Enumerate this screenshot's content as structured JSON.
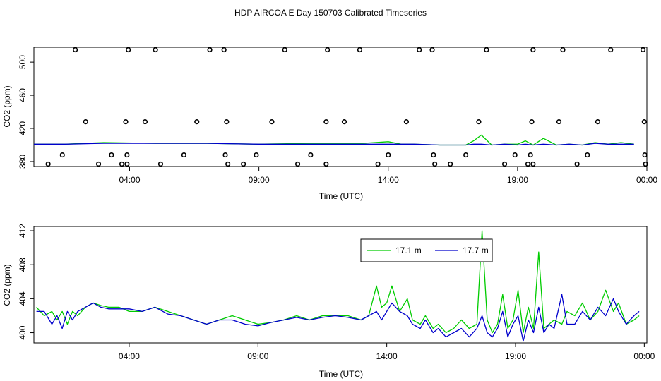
{
  "chart_data": [
    {
      "type": "scatter",
      "title": "HDP AIRCOA E  Day 150703  Calibrated Timeseries",
      "xlabel": "Time (UTC)",
      "ylabel": "CO2 (ppm)",
      "x_unit": "hours",
      "xlim": [
        0.3,
        24.0
      ],
      "ylim": [
        374,
        518
      ],
      "xticks": [
        {
          "value": 4,
          "label": "04:00"
        },
        {
          "value": 9,
          "label": "09:00"
        },
        {
          "value": 14,
          "label": "14:00"
        },
        {
          "value": 19,
          "label": "19:00"
        },
        {
          "value": 24,
          "label": "00:00"
        }
      ],
      "yticks": [
        380,
        420,
        460,
        500
      ],
      "colors": {
        "green": "#00cc00",
        "blue": "#0000cc"
      },
      "calibration_points": {
        "x": [
          0.85,
          2.3,
          1.4,
          1.9,
          2.8,
          3.3,
          3.7,
          3.85,
          3.9,
          3.9,
          3.95,
          4.6,
          5.0,
          5.2,
          6.1,
          6.6,
          7.1,
          7.65,
          7.7,
          7.75,
          7.8,
          8.4,
          8.9,
          9.5,
          10.0,
          10.5,
          11.0,
          11.6,
          11.6,
          11.65,
          12.3,
          12.9,
          13.6,
          14.0,
          14.7,
          15.2,
          15.7,
          15.75,
          15.8,
          16.4,
          17.0,
          17.5,
          17.8,
          18.5,
          18.9,
          19.4,
          19.5,
          19.55,
          19.6,
          19.6,
          20.6,
          20.75,
          21.3,
          21.7,
          22.1,
          22.6,
          23.85,
          23.9,
          23.92,
          23.95
        ],
        "y": [
          377,
          428,
          388,
          515,
          377,
          388,
          377,
          428,
          388,
          377,
          515,
          428,
          515,
          377,
          388,
          428,
          515,
          515,
          388,
          428,
          377,
          377,
          388,
          428,
          515,
          377,
          388,
          377,
          428,
          515,
          428,
          515,
          377,
          388,
          428,
          515,
          515,
          388,
          377,
          377,
          388,
          428,
          515,
          377,
          388,
          377,
          388,
          428,
          515,
          377,
          428,
          515,
          377,
          388,
          428,
          515,
          515,
          428,
          388,
          377
        ]
      },
      "series_breakpoints": [
        {
          "name": "17.1 m",
          "x": [
            0.3,
            1.5,
            3.0,
            5.0,
            7.0,
            9.0,
            11.0,
            13.0,
            14.0,
            14.5,
            15.0,
            16.0,
            17.0,
            17.3,
            17.6,
            18.0,
            18.5,
            19.0,
            19.3,
            19.6,
            20.0,
            20.5,
            21.0,
            21.5,
            22.0,
            22.5,
            23.0,
            23.5
          ],
          "y": [
            401,
            401,
            403,
            402,
            402,
            401,
            402,
            402,
            404,
            401,
            401,
            400,
            400,
            405,
            412,
            400,
            401,
            401,
            405,
            400,
            408,
            400,
            401,
            400,
            403,
            401,
            403,
            401
          ]
        },
        {
          "name": "17.7 m",
          "x": [
            0.3,
            1.5,
            3.0,
            5.0,
            7.0,
            9.0,
            11.0,
            13.0,
            14.0,
            14.5,
            15.0,
            16.0,
            17.0,
            17.3,
            17.6,
            18.0,
            18.5,
            19.0,
            19.3,
            19.6,
            20.0,
            20.5,
            21.0,
            21.5,
            22.0,
            22.5,
            23.0,
            23.5
          ],
          "y": [
            401,
            401,
            402,
            402,
            402,
            401,
            401,
            401,
            401,
            401,
            401,
            400,
            400,
            401,
            401,
            400,
            401,
            400,
            401,
            400,
            401,
            400,
            401,
            400,
            402,
            401,
            401,
            401
          ]
        }
      ]
    },
    {
      "type": "line",
      "title": "",
      "xlabel": "Time (UTC)",
      "ylabel": "CO2 (ppm)",
      "x_unit": "hours",
      "xlim": [
        0.3,
        24.1
      ],
      "ylim": [
        398.8,
        412.5
      ],
      "xticks": [
        {
          "value": 4,
          "label": "04:00"
        },
        {
          "value": 9,
          "label": "09:00"
        },
        {
          "value": 14,
          "label": "14:00"
        },
        {
          "value": 19,
          "label": "19:00"
        },
        {
          "value": 24,
          "label": "00:00"
        }
      ],
      "yticks": [
        400,
        404,
        408,
        412
      ],
      "legend": "top-center",
      "series": [
        {
          "name": "17.1 m",
          "color": "#00cc00",
          "x": [
            0.4,
            0.7,
            1.0,
            1.2,
            1.4,
            1.6,
            1.8,
            2.0,
            2.3,
            2.6,
            2.9,
            3.2,
            3.6,
            4.0,
            4.5,
            5.0,
            5.5,
            6.0,
            6.5,
            7.0,
            7.5,
            8.0,
            8.5,
            9.0,
            9.5,
            10.0,
            10.5,
            11.0,
            11.5,
            12.0,
            12.5,
            13.0,
            13.3,
            13.6,
            13.8,
            14.0,
            14.2,
            14.5,
            14.8,
            15.0,
            15.3,
            15.5,
            15.8,
            16.0,
            16.3,
            16.6,
            16.9,
            17.2,
            17.5,
            17.7,
            17.9,
            18.1,
            18.3,
            18.5,
            18.7,
            18.9,
            19.1,
            19.3,
            19.5,
            19.7,
            19.9,
            20.1,
            20.3,
            20.5,
            20.8,
            21.0,
            21.3,
            21.6,
            21.9,
            22.2,
            22.5,
            22.8,
            23.0,
            23.3,
            23.6,
            23.8
          ],
          "y": [
            403.0,
            402.0,
            402.5,
            401.5,
            402.5,
            401.0,
            402.5,
            402.0,
            403.0,
            403.5,
            403.2,
            403.0,
            403.0,
            402.5,
            402.5,
            403.0,
            402.5,
            402.0,
            401.5,
            401.0,
            401.5,
            402.0,
            401.5,
            401.0,
            401.2,
            401.5,
            402.0,
            401.5,
            402.0,
            402.0,
            402.0,
            401.5,
            402.0,
            405.5,
            403.0,
            403.5,
            405.5,
            402.5,
            404.0,
            401.5,
            401.0,
            402.0,
            400.5,
            401.0,
            400.0,
            400.5,
            401.5,
            400.5,
            401.0,
            412.0,
            401.5,
            400.0,
            401.0,
            404.5,
            400.5,
            401.5,
            405.0,
            400.0,
            403.0,
            400.5,
            409.5,
            400.5,
            401.0,
            401.5,
            401.0,
            402.5,
            402.0,
            403.5,
            401.5,
            402.5,
            405.0,
            402.5,
            403.5,
            401.0,
            401.5,
            402.0
          ]
        },
        {
          "name": "17.7 m",
          "color": "#0000cc",
          "x": [
            0.4,
            0.7,
            1.0,
            1.2,
            1.4,
            1.6,
            1.8,
            2.0,
            2.3,
            2.6,
            2.9,
            3.2,
            3.6,
            4.0,
            4.5,
            5.0,
            5.5,
            6.0,
            6.5,
            7.0,
            7.5,
            8.0,
            8.5,
            9.0,
            9.5,
            10.0,
            10.5,
            11.0,
            11.5,
            12.0,
            12.5,
            13.0,
            13.3,
            13.6,
            13.8,
            14.0,
            14.2,
            14.5,
            14.8,
            15.0,
            15.3,
            15.5,
            15.8,
            16.0,
            16.3,
            16.6,
            16.9,
            17.2,
            17.5,
            17.7,
            17.9,
            18.1,
            18.3,
            18.5,
            18.7,
            18.9,
            19.1,
            19.3,
            19.5,
            19.7,
            19.9,
            20.1,
            20.3,
            20.5,
            20.8,
            21.0,
            21.3,
            21.6,
            21.9,
            22.2,
            22.5,
            22.8,
            23.0,
            23.3,
            23.6,
            23.8
          ],
          "y": [
            402.5,
            402.5,
            401.0,
            402.0,
            400.5,
            402.5,
            401.5,
            402.5,
            403.0,
            403.5,
            403.0,
            402.8,
            402.8,
            402.8,
            402.5,
            403.0,
            402.2,
            402.0,
            401.5,
            401.0,
            401.5,
            401.5,
            401.0,
            400.8,
            401.2,
            401.5,
            401.8,
            401.5,
            401.8,
            402.0,
            401.8,
            401.5,
            402.0,
            402.5,
            401.5,
            402.5,
            403.5,
            402.5,
            402.0,
            401.0,
            400.5,
            401.5,
            400.0,
            400.5,
            399.5,
            400.0,
            400.5,
            399.5,
            400.5,
            402.0,
            400.0,
            399.5,
            400.5,
            402.5,
            399.5,
            401.0,
            402.0,
            399.0,
            401.5,
            400.0,
            403.0,
            400.0,
            401.0,
            400.5,
            404.5,
            401.0,
            401.0,
            402.5,
            401.5,
            403.0,
            402.0,
            404.0,
            402.5,
            401.0,
            402.0,
            402.5
          ]
        }
      ]
    }
  ]
}
